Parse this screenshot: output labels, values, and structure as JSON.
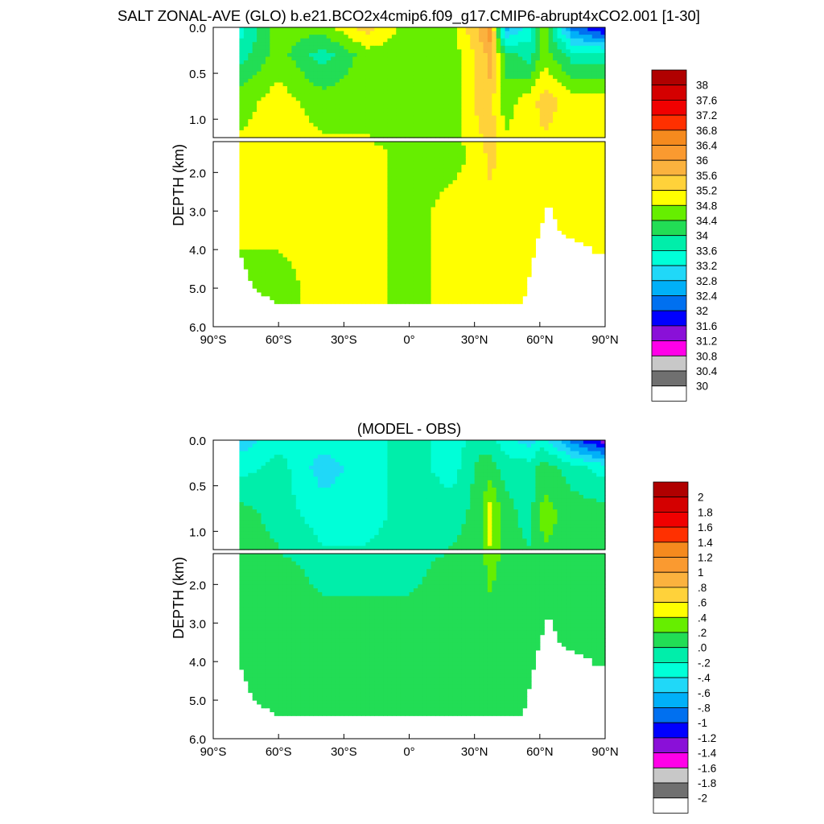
{
  "figure_title": "SALT ZONAL-AVE (GLO) b.e21.BCO2x4cmip6.f09_g17.CMIP6-abrupt4xCO2.001 [1-30]",
  "chart_data": [
    {
      "type": "heatmap",
      "title": "",
      "xlabel": "",
      "ylabel": "DEPTH (km)",
      "x_tick_labels": [
        "90°S",
        "60°S",
        "30°S",
        "0°",
        "30°N",
        "60°N",
        "90°N"
      ],
      "x_ticks": [
        -90,
        -60,
        -30,
        0,
        30,
        60,
        90
      ],
      "xlim": [
        -90,
        90
      ],
      "upper_panel": {
        "ylim": [
          0.0,
          1.2
        ],
        "y_ticks": [
          0.0,
          0.5,
          1.0
        ],
        "y_tick_labels": [
          "0.0",
          "0.5",
          "1.0"
        ]
      },
      "lower_panel": {
        "ylim": [
          1.2,
          6.0
        ],
        "y_ticks": [
          2.0,
          3.0,
          4.0,
          5.0,
          6.0
        ],
        "y_tick_labels": [
          "2.0",
          "3.0",
          "4.0",
          "5.0",
          "6.0"
        ]
      },
      "colorbar_labels": [
        "38",
        "37.6",
        "37.2",
        "36.8",
        "36.4",
        "36",
        "35.6",
        "35.2",
        "34.8",
        "34.4",
        "34",
        "33.6",
        "33.2",
        "32.8",
        "32.4",
        "32",
        "31.6",
        "31.2",
        "30.8",
        "30.4",
        "30"
      ],
      "colors": [
        "#b00000",
        "#d40000",
        "#f00000",
        "#ff3000",
        "#f58a1e",
        "#fa9a30",
        "#fbb23e",
        "#ffd23a",
        "#ffff00",
        "#66ee00",
        "#22dd55",
        "#00eeaa",
        "#00ffd8",
        "#20d8f8",
        "#00b0f8",
        "#0070f0",
        "#0000ff",
        "#8a10d8",
        "#ff00e8",
        "#c8c8c8",
        "#707070",
        "#ffffff"
      ],
      "field_levels_by_lat_depth": {
        "lat": [
          -78,
          -60,
          -40,
          -20,
          0,
          20,
          33,
          37,
          44,
          55,
          62,
          75,
          90
        ],
        "depth_km": [
          0.0,
          0.3,
          0.8,
          1.5,
          3.0,
          5.0
        ],
        "level_index": [
          [
            12,
            9,
            9,
            7,
            9,
            9,
            6,
            5,
            14,
            12,
            9,
            15,
            17
          ],
          [
            11,
            9,
            11,
            9,
            9,
            9,
            7,
            6,
            10,
            11,
            9,
            11,
            11
          ],
          [
            9,
            8,
            9,
            9,
            9,
            9,
            7,
            7,
            9,
            8,
            7,
            8,
            8
          ],
          [
            8,
            8,
            8,
            8,
            9,
            9,
            8,
            7,
            8,
            8,
            8,
            8,
            8
          ],
          [
            8,
            8,
            8,
            8,
            9,
            8,
            8,
            8,
            8,
            8,
            8,
            8,
            8
          ],
          [
            9,
            9,
            8,
            8,
            9,
            8,
            8,
            8,
            8,
            8,
            8,
            8,
            8
          ]
        ]
      }
    },
    {
      "type": "heatmap",
      "title": "(MODEL - OBS)",
      "xlabel": "",
      "ylabel": "DEPTH (km)",
      "x_tick_labels": [
        "90°S",
        "60°S",
        "30°S",
        "0°",
        "30°N",
        "60°N",
        "90°N"
      ],
      "x_ticks": [
        -90,
        -60,
        -30,
        0,
        30,
        60,
        90
      ],
      "xlim": [
        -90,
        90
      ],
      "upper_panel": {
        "ylim": [
          0.0,
          1.2
        ],
        "y_ticks": [
          0.0,
          0.5,
          1.0
        ],
        "y_tick_labels": [
          "0.0",
          "0.5",
          "1.0"
        ]
      },
      "lower_panel": {
        "ylim": [
          1.2,
          6.0
        ],
        "y_ticks": [
          2.0,
          3.0,
          4.0,
          5.0,
          6.0
        ],
        "y_tick_labels": [
          "2.0",
          "3.0",
          "4.0",
          "5.0",
          "6.0"
        ]
      },
      "colorbar_labels": [
        "2",
        "1.8",
        "1.6",
        "1.4",
        "1.2",
        "1",
        ".8",
        ".6",
        ".4",
        ".2",
        ".0",
        "-.2",
        "-.4",
        "-.6",
        "-.8",
        "-1",
        "-1.2",
        "-1.4",
        "-1.6",
        "-1.8",
        "-2"
      ],
      "colors": [
        "#b00000",
        "#d40000",
        "#f00000",
        "#ff3000",
        "#f58a1e",
        "#fa9a30",
        "#fbb23e",
        "#ffd23a",
        "#ffff00",
        "#66ee00",
        "#22dd55",
        "#00eeaa",
        "#00ffd8",
        "#20d8f8",
        "#00b0f8",
        "#0070f0",
        "#0000ff",
        "#8a10d8",
        "#ff00e8",
        "#c8c8c8",
        "#707070",
        "#ffffff"
      ],
      "field_levels_by_lat_depth": {
        "lat": [
          -78,
          -60,
          -40,
          -20,
          0,
          20,
          33,
          37,
          44,
          55,
          62,
          75,
          90
        ],
        "depth_km": [
          0.0,
          0.3,
          0.8,
          1.5,
          3.0,
          5.0
        ],
        "level_index": [
          [
            13,
            12,
            12,
            12,
            11,
            12,
            11,
            11,
            12,
            13,
            12,
            15,
            17
          ],
          [
            12,
            11,
            13,
            12,
            11,
            12,
            10,
            10,
            11,
            11,
            10,
            11,
            12
          ],
          [
            10,
            11,
            12,
            12,
            11,
            11,
            10,
            8,
            10,
            11,
            9,
            10,
            10
          ],
          [
            10,
            10,
            11,
            11,
            11,
            10,
            10,
            9,
            10,
            10,
            10,
            10,
            10
          ],
          [
            10,
            10,
            10,
            10,
            10,
            10,
            10,
            10,
            10,
            10,
            10,
            10,
            10
          ],
          [
            10,
            10,
            10,
            10,
            10,
            10,
            10,
            10,
            10,
            10,
            10,
            10,
            10
          ]
        ]
      }
    }
  ]
}
